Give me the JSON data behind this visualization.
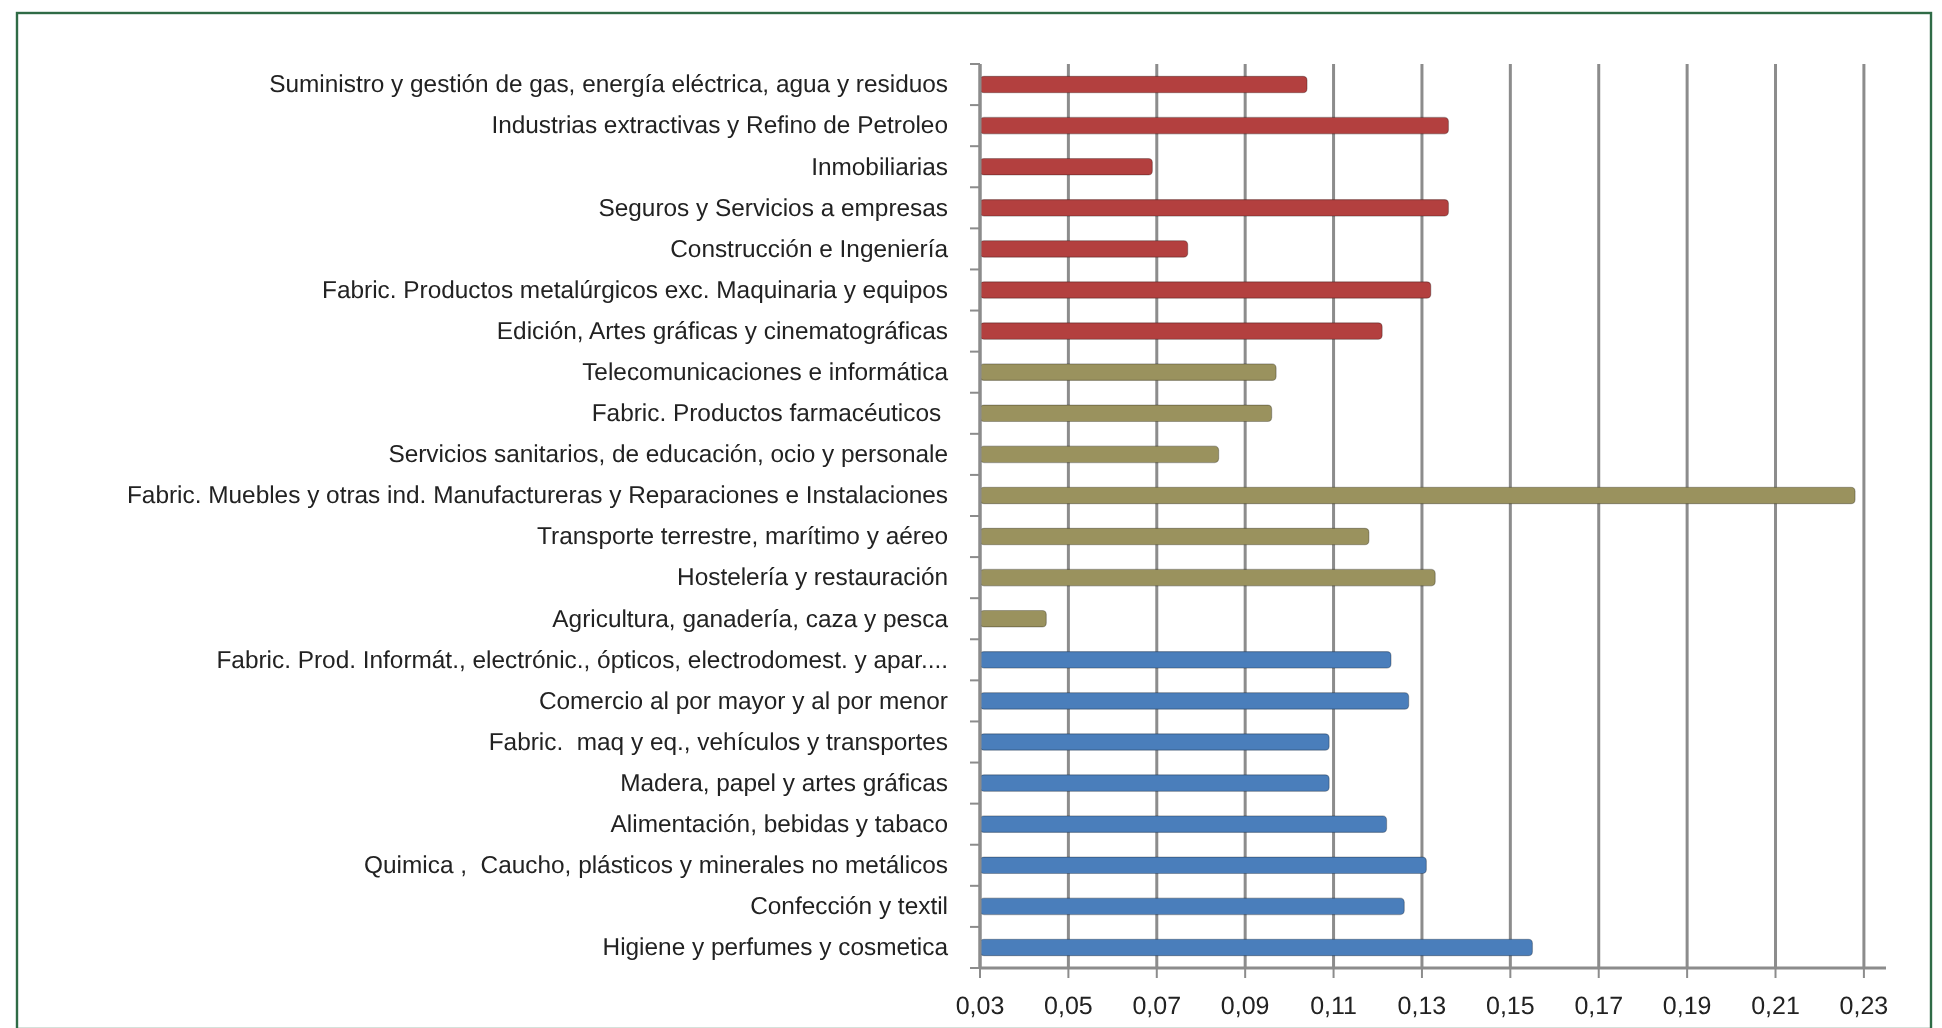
{
  "chart_data": {
    "type": "bar",
    "orientation": "horizontal",
    "categories": [
      "Suministro y gestión de gas, energía eléctrica, agua y residuos",
      "Industrias extractivas y Refino de Petroleo",
      "Inmobiliarias",
      "Seguros y Servicios a empresas",
      "Construcción e Ingeniería",
      "Fabric. Productos metalúrgicos exc. Maquinaria y equipos",
      "Edición, Artes gráficas y cinematográficas",
      "Telecomunicaciones e informática",
      "Fabric. Productos farmacéuticos ",
      "Servicios sanitarios, de educación, ocio y personale",
      "Fabric. Muebles y otras ind. Manufactureras y Reparaciones e Instalaciones",
      "Transporte terrestre, marítimo y aéreo",
      "Hostelería y restauración",
      "Agricultura, ganadería, caza y pesca",
      "Fabric. Prod. Informát., electrónic., ópticos, electrodomest. y apar....",
      "Comercio al por mayor y al por menor",
      "Fabric.  maq y eq., vehículos y transportes",
      "Madera, papel y artes gráficas",
      "Alimentación, bebidas y tabaco",
      "Quimica ,  Caucho, plásticos y minerales no metálicos",
      "Confección y textil",
      "Higiene y perfumes y cosmetica"
    ],
    "values": [
      0.104,
      0.136,
      0.069,
      0.136,
      0.077,
      0.132,
      0.121,
      0.097,
      0.096,
      0.084,
      0.228,
      0.118,
      0.133,
      0.045,
      0.123,
      0.127,
      0.109,
      0.109,
      0.122,
      0.131,
      0.126,
      0.155
    ],
    "colors": [
      "#b3403f",
      "#b3403f",
      "#b3403f",
      "#b3403f",
      "#b3403f",
      "#b3403f",
      "#b3403f",
      "#9a925e",
      "#9a925e",
      "#9a925e",
      "#9a925e",
      "#9a925e",
      "#9a925e",
      "#9a925e",
      "#4a7ebb",
      "#4a7ebb",
      "#4a7ebb",
      "#4a7ebb",
      "#4a7ebb",
      "#4a7ebb",
      "#4a7ebb",
      "#4a7ebb"
    ],
    "xlim": [
      0.03,
      0.235
    ],
    "xticks": [
      {
        "value": 0.03,
        "label": "0,03"
      },
      {
        "value": 0.05,
        "label": "0,05"
      },
      {
        "value": 0.07,
        "label": "0,07"
      },
      {
        "value": 0.09,
        "label": "0,09"
      },
      {
        "value": 0.11,
        "label": "0,11"
      },
      {
        "value": 0.13,
        "label": "0,13"
      },
      {
        "value": 0.15,
        "label": "0,15"
      },
      {
        "value": 0.17,
        "label": "0,17"
      },
      {
        "value": 0.19,
        "label": "0,19"
      },
      {
        "value": 0.21,
        "label": "0,21"
      },
      {
        "value": 0.23,
        "label": "0,23"
      }
    ],
    "grid": "x"
  }
}
